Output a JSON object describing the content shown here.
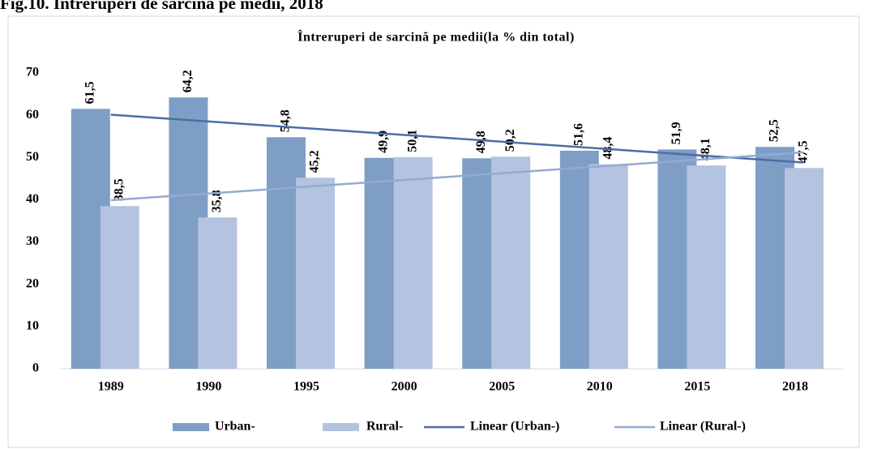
{
  "chart_data": {
    "type": "bar",
    "figure_title": "Fig.10. Întreruperi de sarcină pe medii, 2018",
    "title": "Întreruperi de sarcină pe medii(la % din total)",
    "categories": [
      "1989",
      "1990",
      "1995",
      "2000",
      "2005",
      "2010",
      "2015",
      "2018"
    ],
    "series": [
      {
        "name": "Urban-",
        "color": "#7f9ec6",
        "values": [
          61.5,
          64.2,
          54.8,
          49.9,
          49.8,
          51.6,
          51.9,
          52.5
        ],
        "value_labels": [
          "61,5",
          "64,2",
          "54,8",
          "49,9",
          "49,8",
          "51,6",
          "51,9",
          "52,5"
        ]
      },
      {
        "name": "Rural-",
        "color": "#b4c3df",
        "values": [
          38.5,
          35.8,
          45.2,
          50.1,
          50.2,
          48.4,
          48.1,
          47.5
        ],
        "value_labels": [
          "38,5",
          "35,8",
          "45,2",
          "50,1",
          "50,2",
          "48,4",
          "48,1",
          "47,5"
        ]
      }
    ],
    "trendlines": [
      {
        "name": "Linear (Urban-)",
        "color": "#4a6fa5"
      },
      {
        "name": "Linear (Rural-)",
        "color": "#94aad1"
      }
    ],
    "ylim": [
      0,
      70
    ],
    "yticks": [
      0,
      10,
      20,
      30,
      40,
      50,
      60,
      70
    ],
    "grid": false
  }
}
